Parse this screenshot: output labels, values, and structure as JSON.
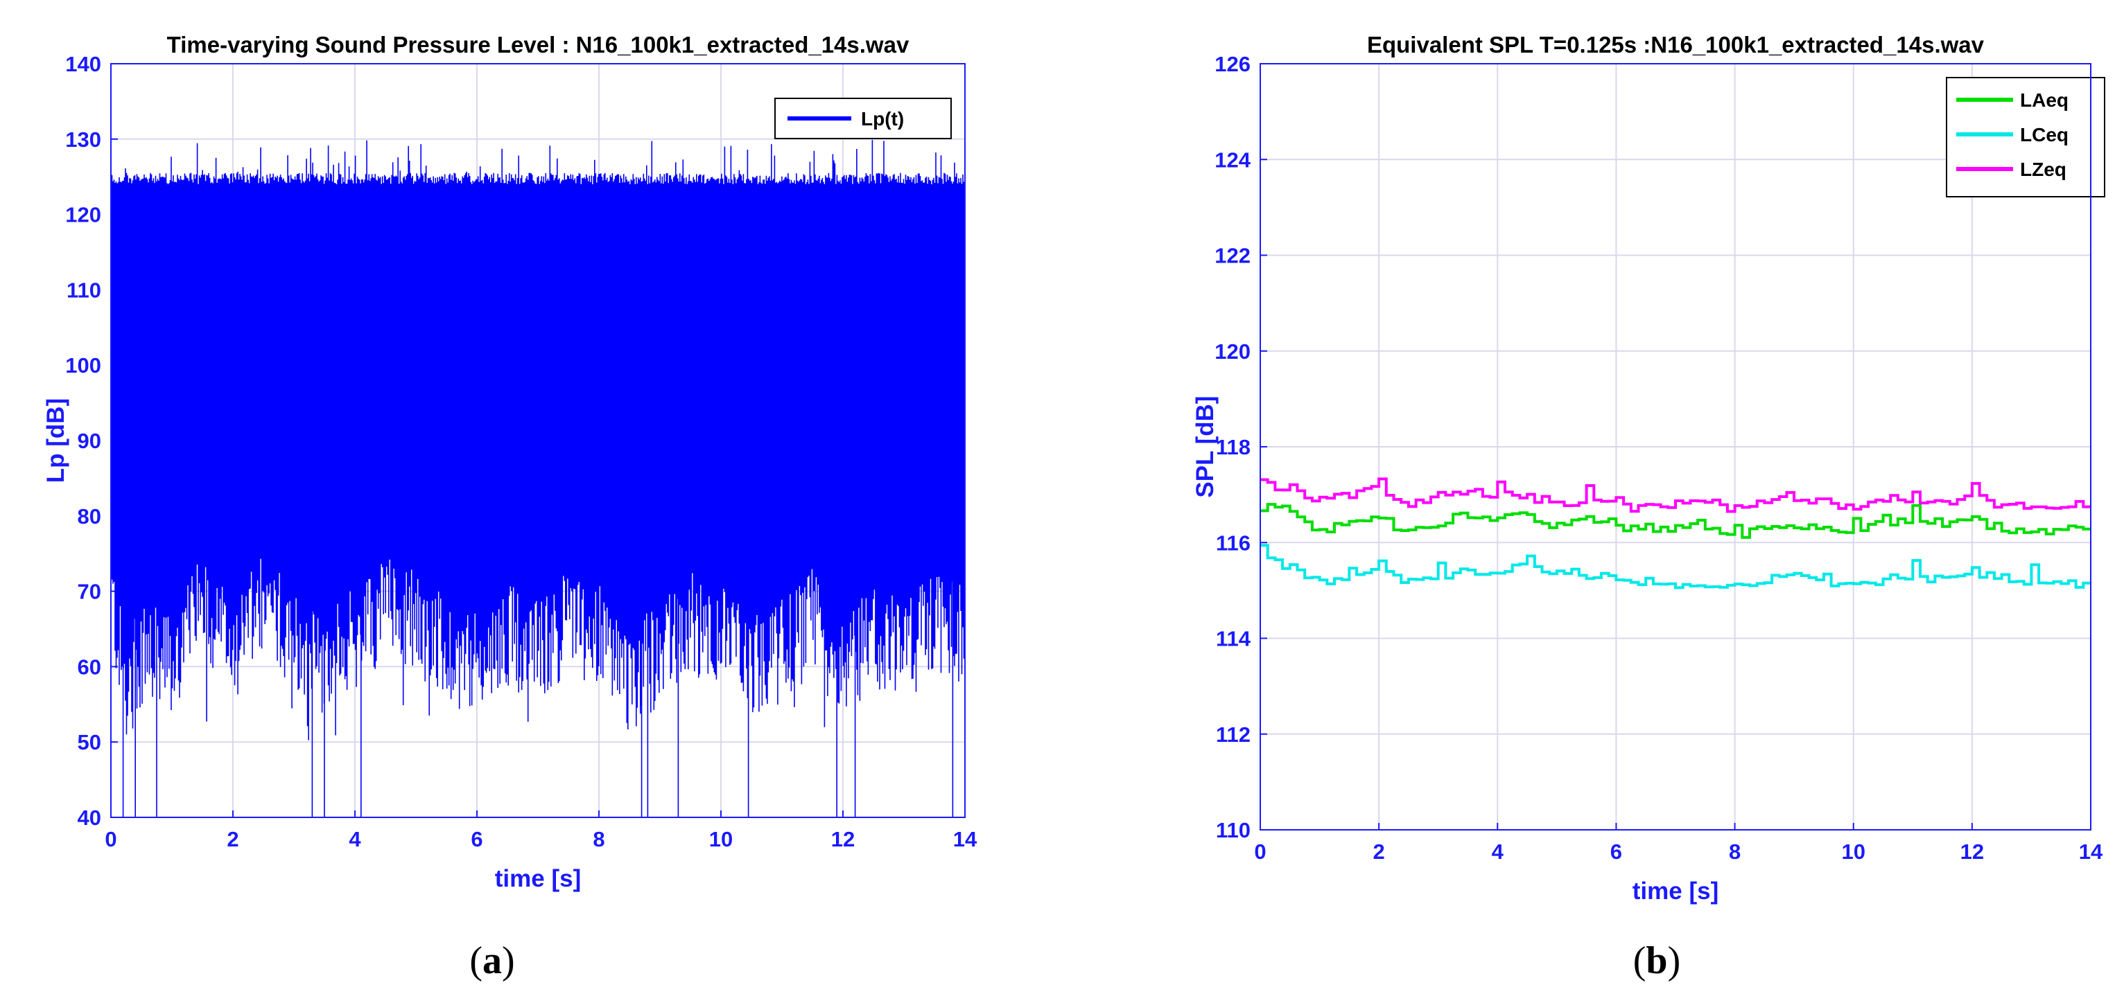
{
  "colors": {
    "lp": "#0000ff",
    "laeq": "#00dd00",
    "lceq": "#00e8e8",
    "lzeq": "#ff00ff",
    "axis": "#1a1aff",
    "grid": "#d8d8ee"
  },
  "panels": {
    "a": {
      "label_open": "(",
      "label_letter": "a",
      "label_close": ")"
    },
    "b": {
      "label_open": "(",
      "label_letter": "b",
      "label_close": ")"
    }
  },
  "chart_data": [
    {
      "id": "a",
      "type": "line",
      "title": "Time-varying Sound Pressure Level : N16_100k1_extracted_14s.wav",
      "xlabel": "time [s]",
      "ylabel": "Lp [dB]",
      "xlim": [
        0,
        14
      ],
      "ylim": [
        40,
        140
      ],
      "xticks": [
        "0",
        "2",
        "4",
        "6",
        "8",
        "10",
        "12",
        "14"
      ],
      "yticks": [
        "40",
        "50",
        "60",
        "70",
        "80",
        "90",
        "100",
        "110",
        "120",
        "130",
        "140"
      ],
      "grid": true,
      "legend_position": "top-right",
      "series": [
        {
          "name": "Lp(t)",
          "color_key": "lp",
          "upper_envelope": {
            "typical": 125.5,
            "peak": 129
          },
          "lower_envelope": {
            "points": [
              [
                0,
                70
              ],
              [
                0.25,
                56
              ],
              [
                0.5,
                62
              ],
              [
                1,
                60
              ],
              [
                1.5,
                68
              ],
              [
                2,
                62
              ],
              [
                2.5,
                68
              ],
              [
                3,
                64
              ],
              [
                3.5,
                60
              ],
              [
                4,
                64
              ],
              [
                4.5,
                68
              ],
              [
                5,
                66
              ],
              [
                5.5,
                62
              ],
              [
                6,
                60
              ],
              [
                6.5,
                64
              ],
              [
                7,
                62
              ],
              [
                7.5,
                66
              ],
              [
                8,
                64
              ],
              [
                8.5,
                58
              ],
              [
                9,
                62
              ],
              [
                9.5,
                66
              ],
              [
                10,
                64
              ],
              [
                10.5,
                60
              ],
              [
                11,
                62
              ],
              [
                11.5,
                66
              ],
              [
                12,
                60
              ],
              [
                12.5,
                64
              ],
              [
                13,
                62
              ],
              [
                13.5,
                66
              ],
              [
                14,
                64
              ]
            ],
            "spikes_to_40dB_at": [
              0.2,
              0.4,
              0.75,
              3.3,
              3.5,
              4.1,
              8.7,
              8.8,
              9.3,
              10.45,
              11.9,
              12.2,
              13.8
            ]
          }
        }
      ]
    },
    {
      "id": "b",
      "type": "line",
      "title": "Equivalent SPL T=0.125s :N16_100k1_extracted_14s.wav",
      "xlabel": "time [s]",
      "ylabel": "SPL [dB]",
      "xlim": [
        0,
        14
      ],
      "ylim": [
        110,
        126
      ],
      "xticks": [
        "0",
        "2",
        "4",
        "6",
        "8",
        "10",
        "12",
        "14"
      ],
      "yticks": [
        "110",
        "112",
        "114",
        "116",
        "118",
        "120",
        "122",
        "124",
        "126"
      ],
      "grid": true,
      "legend_position": "top-right",
      "step_seconds": 0.125,
      "series": [
        {
          "name": "LAeq",
          "color_key": "laeq",
          "x": [
            0,
            0.5,
            1,
            1.5,
            2,
            2.5,
            3,
            3.5,
            4,
            4.5,
            5,
            5.5,
            6,
            6.5,
            7,
            7.5,
            8,
            8.5,
            9,
            9.5,
            10,
            10.5,
            11,
            11.5,
            12,
            12.5,
            13,
            13.5,
            14
          ],
          "values": [
            116.8,
            116.7,
            116.2,
            116.4,
            116.6,
            116.2,
            116.4,
            116.6,
            116.5,
            116.6,
            116.3,
            116.5,
            116.4,
            116.2,
            116.3,
            116.4,
            116.1,
            116.3,
            116.4,
            116.3,
            116.2,
            116.4,
            116.5,
            116.4,
            116.5,
            116.3,
            116.2,
            116.3,
            116.2
          ]
        },
        {
          "name": "LCeq",
          "color_key": "lceq",
          "x": [
            0,
            0.5,
            1,
            1.5,
            2,
            2.5,
            3,
            3.5,
            4,
            4.5,
            5,
            5.5,
            6,
            6.5,
            7,
            7.5,
            8,
            8.5,
            9,
            9.5,
            10,
            10.5,
            11,
            11.5,
            12,
            12.5,
            13,
            13.5,
            14
          ],
          "values": [
            115.8,
            115.5,
            115.2,
            115.2,
            115.4,
            115.2,
            115.2,
            115.4,
            115.4,
            115.5,
            115.3,
            115.4,
            115.2,
            115.2,
            115.1,
            115.2,
            115.1,
            115.2,
            115.3,
            115.2,
            115.1,
            115.2,
            115.3,
            115.2,
            115.4,
            115.3,
            115.2,
            115.2,
            115.1
          ]
        },
        {
          "name": "LZeq",
          "color_key": "lzeq",
          "x": [
            0,
            0.5,
            1,
            1.5,
            2,
            2.5,
            3,
            3.5,
            4,
            4.5,
            5,
            5.5,
            6,
            6.5,
            7,
            7.5,
            8,
            8.5,
            9,
            9.5,
            10,
            10.5,
            11,
            11.5,
            12,
            12.5,
            13,
            13.5,
            14
          ],
          "values": [
            117.3,
            117.1,
            116.9,
            117.0,
            117.2,
            116.8,
            116.9,
            117.1,
            117.0,
            117.0,
            116.8,
            116.9,
            116.8,
            116.7,
            116.8,
            116.9,
            116.7,
            116.8,
            117.0,
            116.8,
            116.7,
            116.9,
            116.9,
            116.8,
            117.0,
            116.8,
            116.7,
            116.8,
            116.8
          ]
        }
      ]
    }
  ]
}
